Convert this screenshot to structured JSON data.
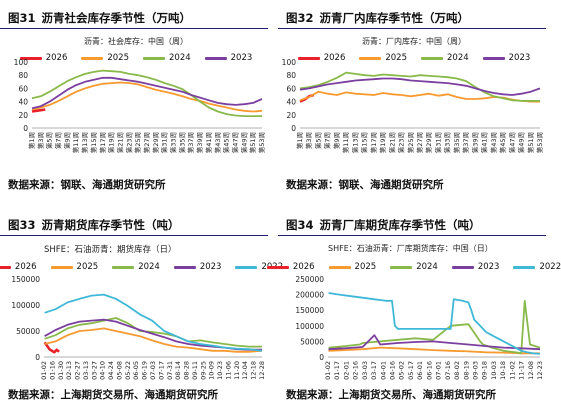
{
  "colors": {
    "y2026": "#e8212b",
    "y2025": "#f79a2f",
    "y2024": "#88b94a",
    "y2023": "#7b3fa0",
    "y2022": "#3fb8d8"
  },
  "chart_data": [
    {
      "type": "line",
      "fig_number": "图31",
      "title": "沥青社会库存季节性（万吨）",
      "subtitle": "沥青：社会库存：中国（周）",
      "source": "数据来源：钢联、海通期货研究所",
      "ylim": [
        0,
        100
      ],
      "yticks": [
        0,
        20,
        40,
        60,
        80,
        100
      ],
      "x_tick_labels": [
        "第1周",
        "第3周",
        "第5周",
        "第7周",
        "第9周",
        "第11周",
        "第13周",
        "第15周",
        "第17周",
        "第19周",
        "第21周",
        "第23周",
        "第25周",
        "第27周",
        "第29周",
        "第31周",
        "第33周",
        "第35周",
        "第37周",
        "第39周",
        "第41周",
        "第43周",
        "第45周",
        "第47周",
        "第49周",
        "第51周",
        "第53周"
      ],
      "xlim": [
        1,
        53
      ],
      "series": [
        {
          "name": "2026",
          "color_key": "y2026",
          "x": [
            1,
            2,
            3,
            4
          ],
          "y": [
            25,
            26,
            27,
            28
          ]
        },
        {
          "name": "2025",
          "color_key": "y2025",
          "x": [
            1,
            3,
            5,
            7,
            9,
            11,
            13,
            15,
            17,
            19,
            21,
            23,
            25,
            27,
            29,
            31,
            33,
            35,
            37,
            39,
            41,
            43,
            45,
            47,
            49,
            51,
            53
          ],
          "y": [
            28,
            31,
            35,
            41,
            48,
            55,
            60,
            64,
            67,
            68,
            69,
            68,
            66,
            62,
            58,
            55,
            52,
            48,
            44,
            41,
            37,
            34,
            31,
            28,
            26,
            25,
            26
          ]
        },
        {
          "name": "2024",
          "color_key": "y2024",
          "x": [
            1,
            3,
            5,
            7,
            9,
            11,
            13,
            15,
            17,
            19,
            21,
            23,
            25,
            27,
            29,
            31,
            33,
            35,
            37,
            39,
            41,
            43,
            45,
            47,
            49,
            51,
            53
          ],
          "y": [
            45,
            48,
            55,
            63,
            71,
            77,
            82,
            85,
            87,
            86,
            85,
            82,
            80,
            77,
            73,
            68,
            64,
            59,
            50,
            40,
            31,
            25,
            21,
            19,
            18,
            18,
            18
          ]
        },
        {
          "name": "2023",
          "color_key": "y2023",
          "x": [
            1,
            3,
            5,
            7,
            9,
            11,
            13,
            15,
            17,
            19,
            21,
            23,
            25,
            27,
            29,
            31,
            33,
            35,
            37,
            39,
            41,
            43,
            45,
            47,
            49,
            51,
            53
          ],
          "y": [
            30,
            33,
            40,
            49,
            58,
            65,
            70,
            73,
            76,
            76,
            74,
            72,
            70,
            67,
            64,
            61,
            58,
            55,
            50,
            46,
            42,
            38,
            36,
            35,
            36,
            38,
            44
          ]
        }
      ]
    },
    {
      "type": "line",
      "fig_number": "图32",
      "title": "沥青厂内库存季节性（万吨）",
      "subtitle": "沥青：厂内库存：中国（周）",
      "source": "数据来源：钢联、海通期货研究所",
      "ylim": [
        0,
        100
      ],
      "yticks": [
        0,
        20,
        40,
        60,
        80,
        100
      ],
      "x_tick_labels": [
        "第1周",
        "第3周",
        "第5周",
        "第7周",
        "第9周",
        "第11周",
        "第13周",
        "第15周",
        "第17周",
        "第19周",
        "第21周",
        "第23周",
        "第25周",
        "第27周",
        "第29周",
        "第31周",
        "第33周",
        "第35周",
        "第37周",
        "第39周",
        "第41周",
        "第43周",
        "第45周",
        "第47周",
        "第49周",
        "第51周",
        "第53周"
      ],
      "xlim": [
        1,
        53
      ],
      "series": [
        {
          "name": "2026",
          "color_key": "y2026",
          "x": [
            1,
            2,
            3,
            4
          ],
          "y": [
            40,
            43,
            48,
            50
          ]
        },
        {
          "name": "2025",
          "color_key": "y2025",
          "x": [
            1,
            3,
            5,
            7,
            9,
            11,
            13,
            15,
            17,
            19,
            21,
            23,
            25,
            27,
            29,
            31,
            33,
            35,
            37,
            39,
            41,
            43,
            45,
            47,
            49,
            51,
            53
          ],
          "y": [
            42,
            47,
            55,
            52,
            50,
            54,
            52,
            51,
            50,
            53,
            51,
            50,
            48,
            50,
            52,
            49,
            51,
            47,
            44,
            44,
            45,
            47,
            46,
            43,
            41,
            40,
            40
          ]
        },
        {
          "name": "2024",
          "color_key": "y2024",
          "x": [
            1,
            3,
            5,
            7,
            9,
            11,
            13,
            15,
            17,
            19,
            21,
            23,
            25,
            27,
            29,
            31,
            33,
            35,
            37,
            39,
            41,
            43,
            45,
            47,
            49,
            51,
            53
          ],
          "y": [
            60,
            62,
            65,
            70,
            76,
            84,
            82,
            80,
            79,
            81,
            80,
            79,
            78,
            80,
            79,
            78,
            77,
            75,
            71,
            62,
            54,
            48,
            45,
            42,
            41,
            41,
            41
          ]
        },
        {
          "name": "2023",
          "color_key": "y2023",
          "x": [
            1,
            3,
            5,
            7,
            9,
            11,
            13,
            15,
            17,
            19,
            21,
            23,
            25,
            27,
            29,
            31,
            33,
            35,
            37,
            39,
            41,
            43,
            45,
            47,
            49,
            51,
            53
          ],
          "y": [
            58,
            60,
            63,
            66,
            68,
            70,
            72,
            73,
            74,
            75,
            75,
            74,
            72,
            71,
            70,
            69,
            68,
            66,
            64,
            60,
            56,
            53,
            51,
            50,
            52,
            55,
            60
          ]
        }
      ]
    },
    {
      "type": "line",
      "fig_number": "图33",
      "title": "沥青期货库存季节性（吨）",
      "subtitle": "SHFE：石油沥青：期货库存（日）",
      "source": "数据来源：上海期货交易所、海通期货研究所",
      "ylim": [
        0,
        150000
      ],
      "yticks": [
        0,
        50000,
        100000,
        150000
      ],
      "x_tick_labels": [
        "01-02",
        "01-16",
        "01-30",
        "02-13",
        "02-27",
        "03-13",
        "03-27",
        "04-10",
        "04-24",
        "05-08",
        "05-22",
        "06-05",
        "06-19",
        "07-03",
        "07-17",
        "07-31",
        "08-14",
        "08-28",
        "09-11",
        "09-25",
        "10-09",
        "10-23",
        "11-06",
        "11-20",
        "12-04",
        "12-18",
        "12-28"
      ],
      "xlim": [
        1,
        362
      ],
      "series": [
        {
          "name": "2026",
          "color_key": "y2026",
          "x": [
            2,
            6,
            10,
            14,
            18,
            22,
            26
          ],
          "y": [
            28000,
            22000,
            15000,
            12000,
            9000,
            14000,
            10000
          ]
        },
        {
          "name": "2025",
          "color_key": "y2025",
          "x": [
            2,
            20,
            40,
            60,
            80,
            100,
            120,
            140,
            160,
            180,
            200,
            220,
            240,
            260,
            280,
            300,
            320,
            340,
            362
          ],
          "y": [
            25000,
            30000,
            42000,
            50000,
            52000,
            55000,
            50000,
            45000,
            40000,
            32000,
            25000,
            20000,
            18000,
            15000,
            12000,
            12000,
            10000,
            10000,
            12000
          ]
        },
        {
          "name": "2024",
          "color_key": "y2024",
          "x": [
            2,
            20,
            40,
            60,
            80,
            100,
            120,
            140,
            160,
            180,
            200,
            220,
            240,
            260,
            280,
            300,
            320,
            340,
            362
          ],
          "y": [
            35000,
            42000,
            55000,
            62000,
            65000,
            70000,
            75000,
            65000,
            50000,
            48000,
            45000,
            40000,
            30000,
            32000,
            28000,
            25000,
            22000,
            20000,
            20000
          ]
        },
        {
          "name": "2023",
          "color_key": "y2023",
          "x": [
            2,
            20,
            40,
            60,
            80,
            100,
            120,
            140,
            160,
            180,
            200,
            220,
            240,
            260,
            280,
            300,
            320,
            340,
            362
          ],
          "y": [
            40000,
            52000,
            62000,
            68000,
            70000,
            72000,
            68000,
            60000,
            52000,
            45000,
            38000,
            30000,
            25000,
            22000,
            20000,
            18000,
            15000,
            14000,
            14000
          ]
        },
        {
          "name": "2022",
          "color_key": "y2022",
          "x": [
            2,
            20,
            40,
            60,
            80,
            100,
            120,
            140,
            160,
            180,
            200,
            220,
            240,
            260,
            280,
            300,
            320,
            340,
            362
          ],
          "y": [
            85000,
            92000,
            105000,
            112000,
            118000,
            120000,
            112000,
            98000,
            82000,
            70000,
            50000,
            40000,
            30000,
            25000,
            22000,
            18000,
            16000,
            15000,
            12000
          ]
        }
      ]
    },
    {
      "type": "line",
      "fig_number": "图34",
      "title": "沥青厂库期货库存季节性（吨）",
      "subtitle": "SHFE：石油沥青：厂库期货库存：中国（日）",
      "source": "数据来源：上海期货交易所、海通期货研究所",
      "ylim": [
        0,
        250000
      ],
      "yticks": [
        0,
        50000,
        100000,
        150000,
        200000,
        250000
      ],
      "x_tick_labels": [
        "01-02",
        "01-17",
        "02-01",
        "02-16",
        "03-03",
        "03-17",
        "04-01",
        "04-16",
        "05-02",
        "05-17",
        "06-01",
        "06-16",
        "07-01",
        "07-16",
        "08-02",
        "08-19",
        "09-03",
        "09-18",
        "10-03",
        "10-18",
        "11-02",
        "11-17",
        "12-08",
        "12-23"
      ],
      "xlim": [
        1,
        362
      ],
      "series": [
        {
          "name": "2026",
          "color_key": "y2026",
          "x": [
            2,
            8,
            14,
            20,
            26
          ],
          "y": [
            22000,
            24000,
            25000,
            27000,
            25000
          ]
        },
        {
          "name": "2025",
          "color_key": "y2025",
          "x": [
            2,
            30,
            60,
            90,
            120,
            150,
            180,
            210,
            240,
            270,
            300,
            330,
            362
          ],
          "y": [
            20000,
            22000,
            25000,
            30000,
            28000,
            25000,
            22000,
            20000,
            18000,
            15000,
            14000,
            12000,
            12000
          ]
        },
        {
          "name": "2024",
          "color_key": "y2024",
          "x": [
            2,
            30,
            55,
            60,
            90,
            120,
            150,
            180,
            210,
            240,
            260,
            265,
            280,
            300,
            320,
            330,
            336,
            345,
            362
          ],
          "y": [
            30000,
            35000,
            40000,
            45000,
            50000,
            55000,
            60000,
            55000,
            100000,
            105000,
            50000,
            40000,
            30000,
            20000,
            15000,
            12000,
            180000,
            40000,
            30000
          ]
        },
        {
          "name": "2023",
          "color_key": "y2023",
          "x": [
            2,
            30,
            60,
            80,
            90,
            120,
            150,
            180,
            210,
            240,
            270,
            300,
            330,
            362
          ],
          "y": [
            25000,
            28000,
            32000,
            70000,
            40000,
            45000,
            48000,
            50000,
            45000,
            40000,
            35000,
            30000,
            28000,
            25000
          ]
        },
        {
          "name": "2022",
          "color_key": "y2022",
          "x": [
            2,
            20,
            40,
            60,
            80,
            100,
            110,
            115,
            120,
            150,
            180,
            200,
            210,
            215,
            230,
            240,
            245,
            250,
            260,
            270,
            280,
            290,
            300,
            310,
            320,
            330,
            340,
            350,
            362
          ],
          "y": [
            205000,
            200000,
            195000,
            190000,
            185000,
            180000,
            180000,
            100000,
            90000,
            90000,
            90000,
            90000,
            90000,
            185000,
            180000,
            175000,
            150000,
            120000,
            100000,
            80000,
            70000,
            60000,
            50000,
            40000,
            30000,
            20000,
            15000,
            12000,
            10000
          ]
        }
      ]
    }
  ]
}
